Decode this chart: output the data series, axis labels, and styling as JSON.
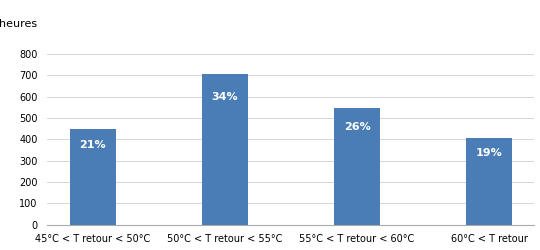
{
  "categories": [
    "45°C < T retour < 50°C",
    "50°C < T retour < 55°C",
    "55°C < T retour < 60°C",
    "60°C < T retour"
  ],
  "values": [
    450,
    706,
    549,
    409
  ],
  "labels": [
    "21%",
    "34%",
    "26%",
    "19%"
  ],
  "bar_color": "#4a7db5",
  "ylabel": "heures",
  "ylim": [
    0,
    850
  ],
  "yticks": [
    0,
    100,
    200,
    300,
    400,
    500,
    600,
    700,
    800
  ],
  "label_fontsize": 8,
  "ylabel_fontsize": 8,
  "xtick_fontsize": 7,
  "ytick_fontsize": 7,
  "background_color": "#ffffff",
  "grid_color": "#d0d0d0",
  "bar_width": 0.35
}
